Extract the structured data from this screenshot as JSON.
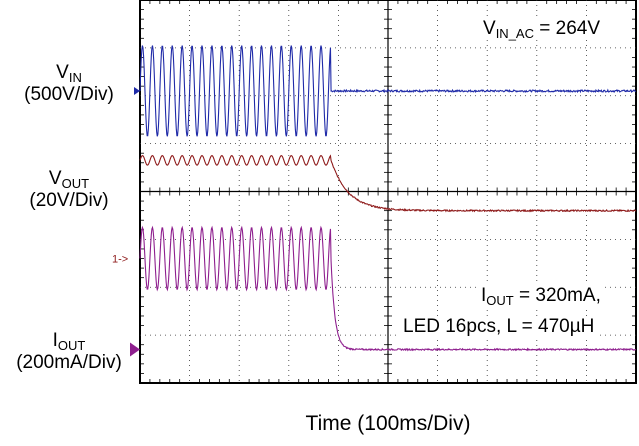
{
  "chart_data": {
    "type": "line",
    "title": "",
    "xlabel": "Time (100ms/Div)",
    "x_divisions": 10,
    "y_divisions": 8,
    "grid": true,
    "annotations": {
      "vin_ac": {
        "prefix": "V",
        "sub": "IN_AC",
        "rest": " = 264V"
      },
      "iout": {
        "prefix": "I",
        "sub": "OUT",
        "rest": " = 320mA,"
      },
      "led": "LED 16pcs, L = 470µH"
    },
    "channel_marker_text": "1->",
    "series": [
      {
        "key": "vin",
        "label_main": "V",
        "label_sub": "IN",
        "label_scale": "(500V/Div)",
        "color": "#1f2aa8",
        "ground_div": 1.9,
        "before": {
          "kind": "sine",
          "amplitude_div": 0.95,
          "cycles_per_div": 5.0
        },
        "event_div": 3.85,
        "after": {
          "kind": "flat",
          "level_div": 0.0
        }
      },
      {
        "key": "vout",
        "label_main": "V",
        "label_sub": "OUT",
        "label_scale": "(20V/Div)",
        "color": "#8e1a1a",
        "ground_div": 3.35,
        "before": {
          "kind": "ripple",
          "amplitude_div": 0.1,
          "cycles_per_div": 5.0
        },
        "event_div": 3.85,
        "after": {
          "kind": "decay",
          "start_div": 0.0,
          "end_div": -1.05,
          "tau_div": 0.35
        }
      },
      {
        "key": "iout",
        "label_main": "I",
        "label_sub": "OUT",
        "label_scale": "(200mA/Div)",
        "color": "#8e1f8e",
        "ground_div": 7.3,
        "before": {
          "kind": "sine",
          "amplitude_div": 0.65,
          "center_div": 1.9,
          "cycles_per_div": 5.0
        },
        "event_div": 3.85,
        "after": {
          "kind": "fall",
          "level_div": 0.0,
          "tau_div": 0.08
        }
      }
    ]
  }
}
